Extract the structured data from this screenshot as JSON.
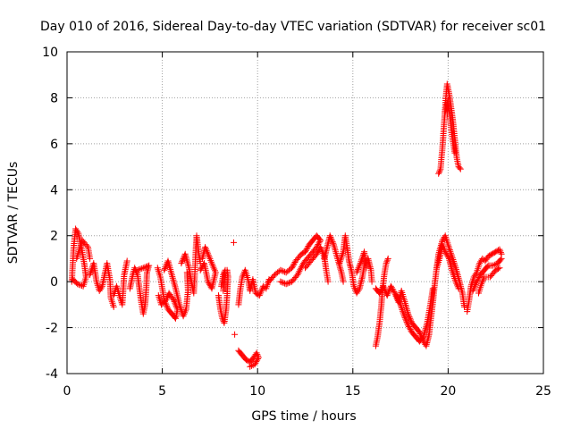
{
  "chart_data": {
    "type": "scatter",
    "title": "Day 010 of 2016, Sidereal Day-to-day VTEC variation (SDTVAR) for receiver sc01",
    "xlabel": "GPS time / hours",
    "ylabel": "SDTVAR / TECUs",
    "xlim": [
      0,
      25
    ],
    "ylim": [
      -4,
      10
    ],
    "xticks": [
      "0",
      "5",
      "10",
      "15",
      "20",
      "25"
    ],
    "yticks": [
      "-4",
      "-2",
      "0",
      "2",
      "4",
      "6",
      "8",
      "10"
    ],
    "grid": true,
    "marker": "+",
    "color": "#ff0000",
    "series": [
      {
        "name": "SDTVAR",
        "segments": [
          [
            [
              0.25,
              0.0
            ],
            [
              0.35,
              1.5
            ],
            [
              0.45,
              2.3
            ],
            [
              0.6,
              2.1
            ],
            [
              0.75,
              1.5
            ],
            [
              0.9,
              0.8
            ],
            [
              1.0,
              0.2
            ],
            [
              0.85,
              -0.2
            ],
            [
              0.55,
              -0.1
            ],
            [
              0.3,
              0.1
            ]
          ],
          [
            [
              0.5,
              1.0
            ],
            [
              0.8,
              1.8
            ],
            [
              1.1,
              1.5
            ],
            [
              1.2,
              1.0
            ]
          ],
          [
            [
              1.2,
              0.3
            ],
            [
              1.4,
              0.8
            ],
            [
              1.55,
              0.0
            ],
            [
              1.7,
              -0.4
            ],
            [
              1.85,
              -0.2
            ],
            [
              2.0,
              0.4
            ],
            [
              2.1,
              0.8
            ],
            [
              2.25,
              0.1
            ],
            [
              2.3,
              -0.7
            ],
            [
              2.45,
              -1.1
            ]
          ],
          [
            [
              2.45,
              -0.6
            ],
            [
              2.6,
              -0.2
            ],
            [
              2.75,
              -0.6
            ],
            [
              2.9,
              -1.0
            ],
            [
              3.0,
              0.3
            ],
            [
              3.15,
              0.9
            ]
          ],
          [
            [
              3.3,
              -0.3
            ],
            [
              3.45,
              0.3
            ],
            [
              3.55,
              0.6
            ],
            [
              3.7,
              0.3
            ],
            [
              3.8,
              -0.3
            ],
            [
              3.9,
              -0.9
            ],
            [
              4.0,
              -1.4
            ],
            [
              4.1,
              -1.0
            ],
            [
              4.15,
              -0.4
            ],
            [
              4.2,
              0.4
            ],
            [
              4.3,
              0.7
            ],
            [
              4.0,
              0.6
            ],
            [
              3.7,
              0.5
            ]
          ],
          [
            [
              4.75,
              0.6
            ],
            [
              4.9,
              0.2
            ],
            [
              5.0,
              -0.3
            ],
            [
              5.1,
              -0.8
            ],
            [
              5.3,
              -1.2
            ],
            [
              5.5,
              -1.4
            ],
            [
              5.7,
              -1.6
            ],
            [
              5.8,
              -1.2
            ],
            [
              5.6,
              -0.8
            ],
            [
              5.35,
              -0.5
            ],
            [
              5.2,
              -0.8
            ],
            [
              4.95,
              -1.0
            ],
            [
              4.8,
              -0.6
            ]
          ],
          [
            [
              5.1,
              0.5
            ],
            [
              5.3,
              0.9
            ],
            [
              5.5,
              0.3
            ],
            [
              5.7,
              -0.3
            ],
            [
              5.9,
              -1.0
            ],
            [
              6.1,
              -1.5
            ],
            [
              6.25,
              -1.2
            ],
            [
              6.35,
              -0.4
            ],
            [
              6.3,
              0.4
            ]
          ],
          [
            [
              6.0,
              0.8
            ],
            [
              6.2,
              1.2
            ],
            [
              6.4,
              0.6
            ],
            [
              6.55,
              -0.1
            ],
            [
              6.65,
              -0.5
            ],
            [
              6.7,
              0.2
            ],
            [
              6.75,
              1.2
            ],
            [
              6.8,
              2.0
            ],
            [
              6.9,
              1.3
            ],
            [
              7.0,
              0.8
            ]
          ],
          [
            [
              7.0,
              0.5
            ],
            [
              7.2,
              0.8
            ],
            [
              7.4,
              0.0
            ],
            [
              7.6,
              -0.3
            ],
            [
              7.8,
              0.4
            ],
            [
              7.5,
              1.0
            ],
            [
              7.25,
              1.5
            ],
            [
              7.1,
              1.0
            ]
          ],
          [
            [
              7.95,
              -0.6
            ],
            [
              8.05,
              -1.2
            ],
            [
              8.15,
              -1.6
            ],
            [
              8.25,
              -1.8
            ],
            [
              8.35,
              -1.2
            ],
            [
              8.4,
              -0.6
            ],
            [
              8.45,
              0.2
            ],
            [
              8.4,
              0.5
            ]
          ],
          [
            [
              8.1,
              -0.2
            ],
            [
              8.2,
              0.3
            ],
            [
              8.3,
              0.5
            ],
            [
              8.2,
              -0.4
            ]
          ],
          [
            [
              8.75,
              1.7
            ]
          ],
          [
            [
              8.8,
              -2.3
            ]
          ],
          [
            [
              9.0,
              -1.0
            ],
            [
              9.1,
              -0.3
            ],
            [
              9.2,
              0.2
            ],
            [
              9.35,
              0.5
            ],
            [
              9.5,
              0.1
            ],
            [
              9.6,
              -0.4
            ],
            [
              9.75,
              0.1
            ],
            [
              9.9,
              -0.5
            ],
            [
              10.1,
              -0.6
            ],
            [
              10.3,
              -0.2
            ],
            [
              10.45,
              -0.3
            ],
            [
              10.6,
              0.1
            ]
          ],
          [
            [
              9.0,
              -3.0
            ],
            [
              9.2,
              -3.2
            ],
            [
              9.4,
              -3.4
            ],
            [
              9.6,
              -3.5
            ],
            [
              9.8,
              -3.3
            ],
            [
              9.95,
              -3.1
            ],
            [
              10.05,
              -3.3
            ],
            [
              9.85,
              -3.6
            ],
            [
              9.6,
              -3.7
            ]
          ],
          [
            [
              10.6,
              0.0
            ],
            [
              10.9,
              0.3
            ],
            [
              11.2,
              0.5
            ],
            [
              11.5,
              0.4
            ],
            [
              11.8,
              0.6
            ],
            [
              12.0,
              0.9
            ],
            [
              12.3,
              1.2
            ],
            [
              12.5,
              1.3
            ],
            [
              12.7,
              1.6
            ],
            [
              12.9,
              1.8
            ],
            [
              13.1,
              2.0
            ],
            [
              13.3,
              1.8
            ],
            [
              13.1,
              1.5
            ],
            [
              12.8,
              1.2
            ],
            [
              12.4,
              0.8
            ],
            [
              12.1,
              0.3
            ],
            [
              11.8,
              0.0
            ],
            [
              11.5,
              -0.1
            ],
            [
              11.2,
              0.0
            ]
          ],
          [
            [
              12.5,
              0.6
            ],
            [
              12.8,
              0.9
            ],
            [
              13.1,
              1.2
            ],
            [
              13.3,
              1.5
            ],
            [
              13.5,
              1.1
            ],
            [
              13.6,
              0.5
            ],
            [
              13.7,
              0.0
            ]
          ],
          [
            [
              13.5,
              1.0
            ],
            [
              13.65,
              1.5
            ],
            [
              13.8,
              2.0
            ],
            [
              14.0,
              1.6
            ],
            [
              14.2,
              1.0
            ],
            [
              14.4,
              0.4
            ],
            [
              14.5,
              0.0
            ]
          ],
          [
            [
              14.3,
              0.8
            ],
            [
              14.5,
              1.3
            ],
            [
              14.6,
              2.0
            ],
            [
              14.7,
              1.5
            ],
            [
              14.8,
              0.9
            ],
            [
              14.95,
              0.4
            ],
            [
              15.05,
              -0.2
            ],
            [
              15.2,
              -0.5
            ],
            [
              15.35,
              -0.3
            ],
            [
              15.5,
              0.2
            ],
            [
              15.65,
              0.9
            ],
            [
              15.8,
              1.0
            ],
            [
              15.95,
              0.5
            ],
            [
              16.0,
              0.0
            ]
          ],
          [
            [
              15.2,
              0.4
            ],
            [
              15.4,
              0.8
            ],
            [
              15.6,
              1.3
            ],
            [
              15.7,
              0.6
            ]
          ],
          [
            [
              16.2,
              -2.8
            ],
            [
              16.3,
              -2.4
            ],
            [
              16.4,
              -1.8
            ],
            [
              16.5,
              -1.0
            ],
            [
              16.55,
              -0.4
            ],
            [
              16.65,
              0.3
            ],
            [
              16.75,
              0.8
            ],
            [
              16.85,
              1.0
            ]
          ],
          [
            [
              16.2,
              -0.3
            ],
            [
              16.4,
              -0.5
            ],
            [
              16.6,
              -0.2
            ],
            [
              16.8,
              -0.6
            ],
            [
              17.0,
              -0.2
            ],
            [
              17.2,
              -0.5
            ],
            [
              17.4,
              -0.9
            ],
            [
              17.55,
              -0.4
            ],
            [
              17.7,
              -0.8
            ],
            [
              17.9,
              -1.4
            ],
            [
              18.1,
              -1.8
            ],
            [
              18.3,
              -2.0
            ],
            [
              18.5,
              -2.2
            ],
            [
              18.7,
              -2.6
            ],
            [
              18.85,
              -2.8
            ],
            [
              19.0,
              -2.3
            ],
            [
              19.1,
              -1.6
            ],
            [
              19.2,
              -0.9
            ],
            [
              19.3,
              -0.1
            ],
            [
              19.4,
              0.6
            ],
            [
              19.5,
              1.2
            ],
            [
              19.6,
              1.5
            ],
            [
              19.7,
              1.8
            ],
            [
              19.85,
              2.0
            ],
            [
              20.0,
              1.6
            ],
            [
              20.2,
              1.1
            ],
            [
              20.4,
              0.6
            ],
            [
              20.6,
              0.0
            ],
            [
              20.75,
              -0.5
            ],
            [
              20.85,
              -1.1
            ]
          ],
          [
            [
              17.3,
              -0.6
            ],
            [
              17.5,
              -1.0
            ],
            [
              17.7,
              -1.5
            ],
            [
              17.9,
              -1.9
            ],
            [
              18.1,
              -2.2
            ],
            [
              18.3,
              -2.4
            ],
            [
              18.5,
              -2.6
            ],
            [
              18.7,
              -2.4
            ],
            [
              18.9,
              -1.8
            ],
            [
              19.05,
              -1.1
            ],
            [
              19.2,
              -0.3
            ]
          ],
          [
            [
              19.4,
              0.6
            ],
            [
              19.55,
              1.0
            ],
            [
              19.7,
              1.6
            ],
            [
              19.85,
              1.3
            ],
            [
              20.05,
              1.0
            ],
            [
              20.2,
              0.5
            ],
            [
              20.4,
              0.0
            ],
            [
              20.55,
              -0.3
            ]
          ],
          [
            [
              19.5,
              4.7
            ],
            [
              19.6,
              4.9
            ],
            [
              19.7,
              5.8
            ],
            [
              19.8,
              7.0
            ],
            [
              19.9,
              8.2
            ],
            [
              19.95,
              8.6
            ],
            [
              20.05,
              8.2
            ],
            [
              20.15,
              7.6
            ],
            [
              20.25,
              7.0
            ],
            [
              20.35,
              6.2
            ],
            [
              20.45,
              5.4
            ],
            [
              20.55,
              5.0
            ],
            [
              20.65,
              4.9
            ]
          ],
          [
            [
              19.85,
              7.4
            ],
            [
              20.0,
              7.9
            ],
            [
              20.1,
              7.2
            ],
            [
              20.2,
              6.4
            ],
            [
              20.35,
              5.6
            ]
          ],
          [
            [
              21.0,
              -1.3
            ],
            [
              21.1,
              -0.8
            ],
            [
              21.2,
              -0.2
            ],
            [
              21.35,
              0.2
            ],
            [
              21.5,
              0.4
            ],
            [
              21.65,
              0.8
            ],
            [
              21.8,
              1.0
            ],
            [
              21.95,
              0.9
            ],
            [
              22.1,
              1.1
            ],
            [
              22.3,
              1.2
            ],
            [
              22.5,
              1.3
            ],
            [
              22.7,
              1.4
            ],
            [
              22.8,
              1.2
            ]
          ],
          [
            [
              21.3,
              -0.4
            ],
            [
              21.5,
              0.0
            ],
            [
              21.7,
              0.3
            ],
            [
              21.9,
              0.5
            ],
            [
              22.1,
              0.7
            ],
            [
              22.35,
              0.7
            ],
            [
              22.6,
              0.8
            ],
            [
              22.8,
              1.0
            ]
          ],
          [
            [
              21.6,
              -0.5
            ],
            [
              21.75,
              -0.1
            ],
            [
              21.9,
              0.2
            ],
            [
              22.2,
              0.2
            ],
            [
              22.5,
              0.5
            ],
            [
              22.7,
              0.6
            ]
          ]
        ]
      }
    ]
  }
}
